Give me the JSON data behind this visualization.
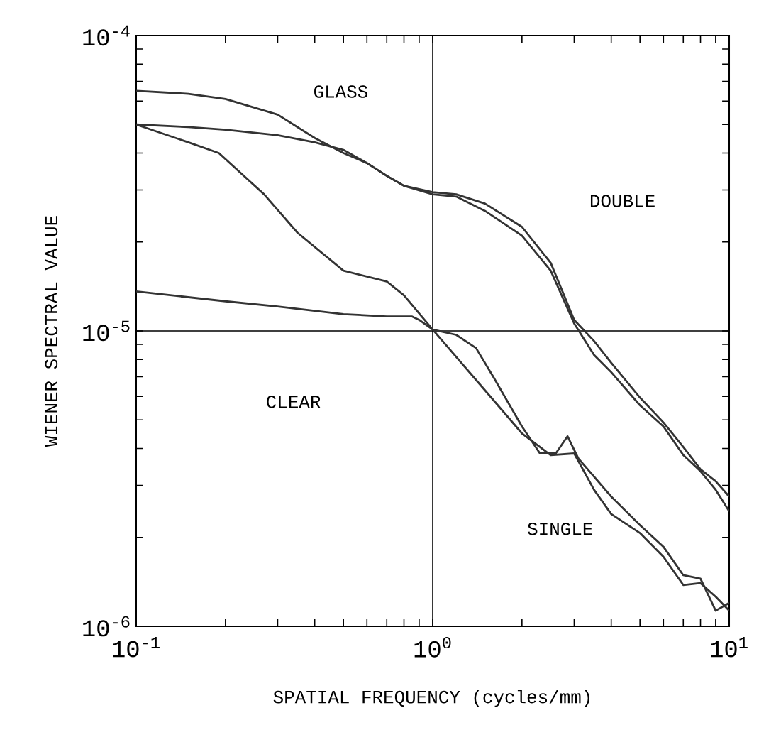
{
  "chart_data": {
    "type": "line",
    "xlabel": "SPATIAL FREQUENCY (cycles/mm)",
    "ylabel": "WIENER SPECTRAL VALUE",
    "log": "xy",
    "grid": true,
    "marker": "none",
    "line_style": "solid",
    "xlim": [
      0.1,
      10
    ],
    "ylim": [
      1e-06,
      0.0001
    ],
    "xticks": [
      {
        "value": 0.1,
        "label": "10$^{-1}$"
      },
      {
        "value": 1,
        "label": "10$^{0}$"
      },
      {
        "value": 10,
        "label": "10$^{1}$"
      }
    ],
    "yticks": [
      {
        "value": 1e-06,
        "label": "10$^{-6}$"
      },
      {
        "value": 1e-05,
        "label": "10$^{-5}$"
      },
      {
        "value": 0.0001,
        "label": "10$^{-4}$"
      }
    ],
    "annotations": [
      "GLASS",
      "CLEAR",
      "DOUBLE",
      "SINGLE"
    ],
    "series": [
      {
        "color": "#333333",
        "x": [
          0.1,
          0.15,
          0.2,
          0.3,
          0.4,
          0.5,
          0.6,
          0.7,
          0.8,
          1,
          1.2,
          1.5,
          2,
          2.5,
          3,
          3.5,
          4,
          5,
          6,
          7,
          8,
          9,
          10
        ],
        "values": [
          6.5e-05,
          6.35e-05,
          6.1e-05,
          5.4e-05,
          4.5e-05,
          4e-05,
          3.7e-05,
          3.35e-05,
          3.1e-05,
          2.95e-05,
          2.9e-05,
          2.7e-05,
          2.25e-05,
          1.7e-05,
          1.09e-05,
          9.25e-06,
          7.8e-06,
          5.95e-06,
          4.9e-06,
          4.05e-06,
          3.4e-06,
          3.1e-06,
          2.75e-06
        ]
      },
      {
        "color": "#333333",
        "x": [
          0.1,
          0.15,
          0.2,
          0.3,
          0.4,
          0.5,
          0.6,
          0.7,
          0.8,
          1,
          1.2,
          1.5,
          2,
          2.5,
          3,
          3.5,
          4,
          5,
          6,
          7,
          8,
          9,
          10
        ],
        "values": [
          5e-05,
          4.9e-05,
          4.8e-05,
          4.6e-05,
          4.35e-05,
          4.1e-05,
          3.7e-05,
          3.35e-05,
          3.1e-05,
          2.9e-05,
          2.85e-05,
          2.55e-05,
          2.1e-05,
          1.6e-05,
          1.06e-05,
          8.3e-06,
          7.25e-06,
          5.6e-06,
          4.75e-06,
          3.8e-06,
          3.35e-06,
          2.9e-06,
          2.45e-06
        ]
      },
      {
        "color": "#333333",
        "x": [
          0.1,
          0.15,
          0.19,
          0.27,
          0.35,
          0.5,
          0.7,
          0.8,
          1,
          1.5,
          2,
          2.5,
          3,
          3.5,
          4,
          5,
          6,
          7,
          8,
          9,
          10
        ],
        "values": [
          5e-05,
          4.35e-05,
          4e-05,
          2.9e-05,
          2.15e-05,
          1.6e-05,
          1.47e-05,
          1.32e-05,
          1.01e-05,
          6.3e-06,
          4.5e-06,
          3.8e-06,
          3.85e-06,
          2.9e-06,
          2.4e-06,
          2.07e-06,
          1.72e-06,
          1.38e-06,
          1.4e-06,
          1.26e-06,
          1.13e-06
        ]
      },
      {
        "color": "#333333",
        "x": [
          0.1,
          0.2,
          0.3,
          0.5,
          0.7,
          0.85,
          0.9,
          1,
          1.2,
          1.4,
          1.6,
          2,
          2.3,
          2.6,
          2.85,
          3.1,
          4,
          5,
          6,
          7,
          8,
          9,
          10
        ],
        "values": [
          1.36e-05,
          1.26e-05,
          1.21e-05,
          1.14e-05,
          1.12e-05,
          1.12e-05,
          1.09e-05,
          1.01e-05,
          9.7e-06,
          8.75e-06,
          7e-06,
          4.75e-06,
          3.85e-06,
          3.85e-06,
          4.4e-06,
          3.7e-06,
          2.75e-06,
          2.2e-06,
          1.86e-06,
          1.49e-06,
          1.45e-06,
          1.13e-06,
          1.2e-06
        ]
      }
    ]
  }
}
